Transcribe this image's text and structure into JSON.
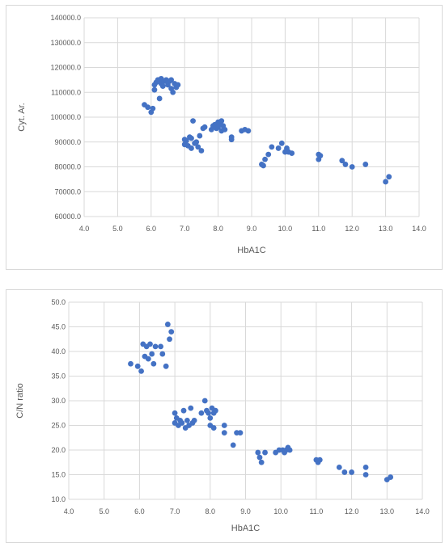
{
  "chart_data": [
    {
      "type": "scatter",
      "title": "",
      "xlabel": "HbA1C",
      "ylabel": "Cyt. Ar.",
      "xlim": [
        4.0,
        14.0
      ],
      "ylim": [
        60000,
        140000
      ],
      "x_ticks": [
        "4.0",
        "5.0",
        "6.0",
        "7.0",
        "8.0",
        "9.0",
        "10.0",
        "11.0",
        "12.0",
        "13.0",
        "14.0"
      ],
      "y_ticks": [
        "60000.0",
        "70000.0",
        "80000.0",
        "90000.0",
        "100000.0",
        "110000.0",
        "120000.0",
        "130000.0",
        "140000.0"
      ],
      "x_tick_values": [
        4,
        5,
        6,
        7,
        8,
        9,
        10,
        11,
        12,
        13,
        14
      ],
      "y_tick_values": [
        60000,
        70000,
        80000,
        90000,
        100000,
        110000,
        120000,
        130000,
        140000
      ],
      "grid": true,
      "marker_color": "#4472c4",
      "points": [
        [
          5.8,
          105000
        ],
        [
          5.9,
          104000
        ],
        [
          6.0,
          102000
        ],
        [
          6.05,
          103500
        ],
        [
          6.1,
          113000
        ],
        [
          6.1,
          111000
        ],
        [
          6.15,
          114000
        ],
        [
          6.2,
          115000
        ],
        [
          6.25,
          107500
        ],
        [
          6.3,
          115500
        ],
        [
          6.3,
          113500
        ],
        [
          6.35,
          112500
        ],
        [
          6.4,
          114500
        ],
        [
          6.45,
          115000
        ],
        [
          6.5,
          113000
        ],
        [
          6.55,
          114500
        ],
        [
          6.6,
          111500
        ],
        [
          6.6,
          115000
        ],
        [
          6.65,
          110000
        ],
        [
          6.7,
          113500
        ],
        [
          6.75,
          112000
        ],
        [
          6.8,
          113000
        ],
        [
          7.0,
          91000
        ],
        [
          7.0,
          89000
        ],
        [
          7.05,
          90500
        ],
        [
          7.1,
          88500
        ],
        [
          7.15,
          92000
        ],
        [
          7.2,
          87500
        ],
        [
          7.2,
          91500
        ],
        [
          7.25,
          98500
        ],
        [
          7.3,
          89500
        ],
        [
          7.35,
          90000
        ],
        [
          7.4,
          88000
        ],
        [
          7.45,
          92500
        ],
        [
          7.5,
          86500
        ],
        [
          7.55,
          95500
        ],
        [
          7.6,
          96000
        ],
        [
          7.8,
          95000
        ],
        [
          7.85,
          96500
        ],
        [
          7.9,
          97000
        ],
        [
          7.95,
          95500
        ],
        [
          8.0,
          98000
        ],
        [
          8.0,
          96000
        ],
        [
          8.05,
          97500
        ],
        [
          8.1,
          94500
        ],
        [
          8.1,
          98500
        ],
        [
          8.15,
          96500
        ],
        [
          8.2,
          95000
        ],
        [
          8.4,
          91000
        ],
        [
          8.4,
          92000
        ],
        [
          8.7,
          94500
        ],
        [
          8.8,
          95000
        ],
        [
          8.9,
          94500
        ],
        [
          9.3,
          81000
        ],
        [
          9.35,
          80500
        ],
        [
          9.4,
          83000
        ],
        [
          9.5,
          85000
        ],
        [
          9.6,
          88000
        ],
        [
          9.8,
          87500
        ],
        [
          9.9,
          89500
        ],
        [
          10.0,
          86000
        ],
        [
          10.05,
          87500
        ],
        [
          10.1,
          86000
        ],
        [
          10.2,
          85500
        ],
        [
          11.0,
          83000
        ],
        [
          11.0,
          85000
        ],
        [
          11.05,
          84500
        ],
        [
          11.7,
          82500
        ],
        [
          11.8,
          81000
        ],
        [
          12.0,
          80000
        ],
        [
          12.4,
          81000
        ],
        [
          13.0,
          74000
        ],
        [
          13.1,
          76000
        ]
      ]
    },
    {
      "type": "scatter",
      "title": "",
      "xlabel": "HbA1C",
      "ylabel": "C/N ratio",
      "xlim": [
        4.0,
        14.0
      ],
      "ylim": [
        10.0,
        50.0
      ],
      "x_ticks": [
        "4.0",
        "5.0",
        "6.0",
        "7.0",
        "8.0",
        "9.0",
        "10.0",
        "11.0",
        "12.0",
        "13.0",
        "14.0"
      ],
      "y_ticks": [
        "10.0",
        "15.0",
        "20.0",
        "25.0",
        "30.0",
        "35.0",
        "40.0",
        "45.0",
        "50.0"
      ],
      "x_tick_values": [
        4,
        5,
        6,
        7,
        8,
        9,
        10,
        11,
        12,
        13,
        14
      ],
      "y_tick_values": [
        10,
        15,
        20,
        25,
        30,
        35,
        40,
        45,
        50
      ],
      "grid": true,
      "marker_color": "#4472c4",
      "points": [
        [
          5.75,
          37.5
        ],
        [
          5.95,
          37.0
        ],
        [
          6.05,
          36.0
        ],
        [
          6.1,
          41.5
        ],
        [
          6.15,
          39.0
        ],
        [
          6.2,
          41.0
        ],
        [
          6.25,
          38.5
        ],
        [
          6.3,
          41.5
        ],
        [
          6.35,
          39.5
        ],
        [
          6.4,
          37.5
        ],
        [
          6.45,
          41.0
        ],
        [
          6.6,
          41.0
        ],
        [
          6.65,
          39.5
        ],
        [
          6.75,
          37.0
        ],
        [
          6.8,
          45.5
        ],
        [
          6.85,
          42.5
        ],
        [
          6.9,
          44.0
        ],
        [
          7.0,
          27.5
        ],
        [
          7.0,
          25.5
        ],
        [
          7.05,
          26.5
        ],
        [
          7.1,
          25.0
        ],
        [
          7.15,
          26.0
        ],
        [
          7.2,
          25.5
        ],
        [
          7.25,
          28.0
        ],
        [
          7.3,
          24.5
        ],
        [
          7.35,
          26.0
        ],
        [
          7.4,
          25.0
        ],
        [
          7.45,
          28.5
        ],
        [
          7.5,
          25.5
        ],
        [
          7.55,
          26.0
        ],
        [
          7.75,
          27.5
        ],
        [
          7.85,
          30.0
        ],
        [
          7.9,
          28.0
        ],
        [
          7.95,
          27.5
        ],
        [
          8.0,
          26.5
        ],
        [
          8.0,
          25.0
        ],
        [
          8.05,
          28.5
        ],
        [
          8.1,
          27.5
        ],
        [
          8.1,
          24.5
        ],
        [
          8.15,
          28.0
        ],
        [
          8.4,
          25.0
        ],
        [
          8.4,
          23.5
        ],
        [
          8.65,
          21.0
        ],
        [
          8.75,
          23.5
        ],
        [
          8.85,
          23.5
        ],
        [
          9.35,
          19.5
        ],
        [
          9.4,
          18.5
        ],
        [
          9.45,
          17.5
        ],
        [
          9.55,
          19.5
        ],
        [
          9.85,
          19.5
        ],
        [
          9.95,
          20.0
        ],
        [
          10.05,
          20.0
        ],
        [
          10.1,
          19.5
        ],
        [
          10.15,
          20.0
        ],
        [
          10.2,
          20.5
        ],
        [
          10.25,
          20.0
        ],
        [
          11.0,
          18.0
        ],
        [
          11.05,
          17.5
        ],
        [
          11.1,
          18.0
        ],
        [
          11.65,
          16.5
        ],
        [
          11.8,
          15.5
        ],
        [
          12.0,
          15.5
        ],
        [
          12.4,
          16.5
        ],
        [
          12.4,
          15.0
        ],
        [
          13.0,
          14.0
        ],
        [
          13.1,
          14.5
        ]
      ]
    }
  ]
}
